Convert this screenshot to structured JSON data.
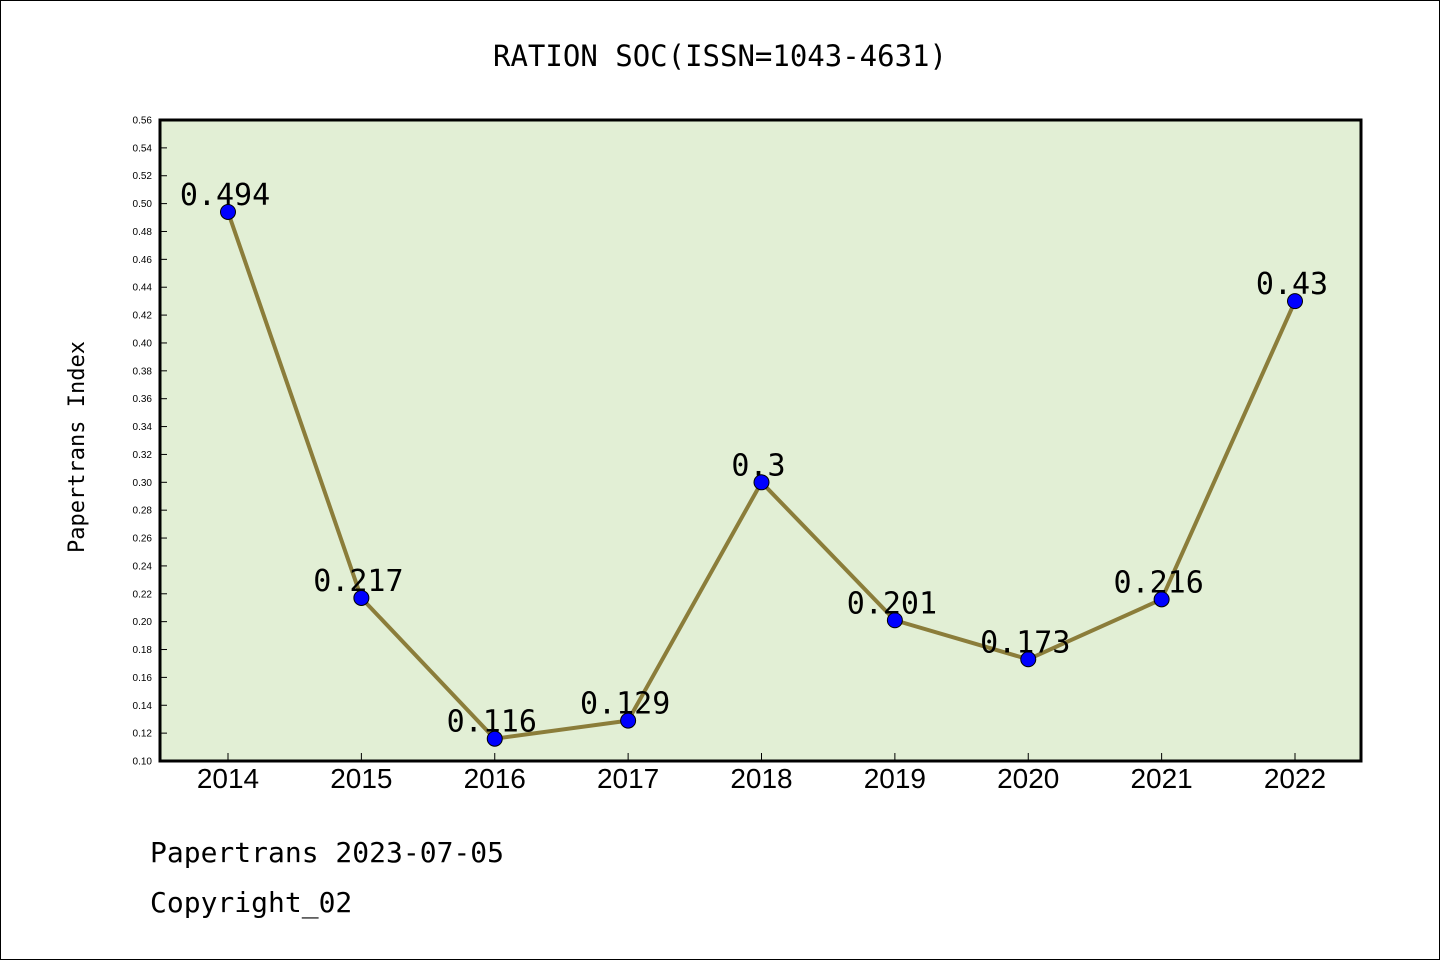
{
  "chart_data": {
    "type": "line",
    "title": "RATION SOC(ISSN=1043-4631)",
    "ylabel": "Papertrans Index",
    "xlabel": "",
    "categories": [
      "2014",
      "2015",
      "2016",
      "2017",
      "2018",
      "2019",
      "2020",
      "2021",
      "2022"
    ],
    "series": [
      {
        "values": [
          0.494,
          0.217,
          0.116,
          0.129,
          0.3,
          0.201,
          0.173,
          0.216,
          0.43
        ]
      }
    ],
    "data_labels": [
      "0.494",
      "0.217",
      "0.116",
      "0.129",
      "0.3",
      "0.201",
      "0.173",
      "0.216",
      "0.43"
    ],
    "ylim": [
      0.1,
      0.56
    ],
    "yticks": [
      "0.10",
      "0.12",
      "0.14",
      "0.16",
      "0.18",
      "0.20",
      "0.22",
      "0.24",
      "0.26",
      "0.28",
      "0.30",
      "0.32",
      "0.34",
      "0.36",
      "0.38",
      "0.40",
      "0.42",
      "0.44",
      "0.46",
      "0.48",
      "0.50",
      "0.52",
      "0.54",
      "0.56"
    ],
    "grid": false,
    "colors": {
      "line": "#8B7D3A",
      "marker": "#0000FF",
      "plot_background": "#E2EFD5"
    }
  },
  "footer": {
    "line1": "Papertrans 2023-07-05",
    "line2": "Copyright_02"
  }
}
